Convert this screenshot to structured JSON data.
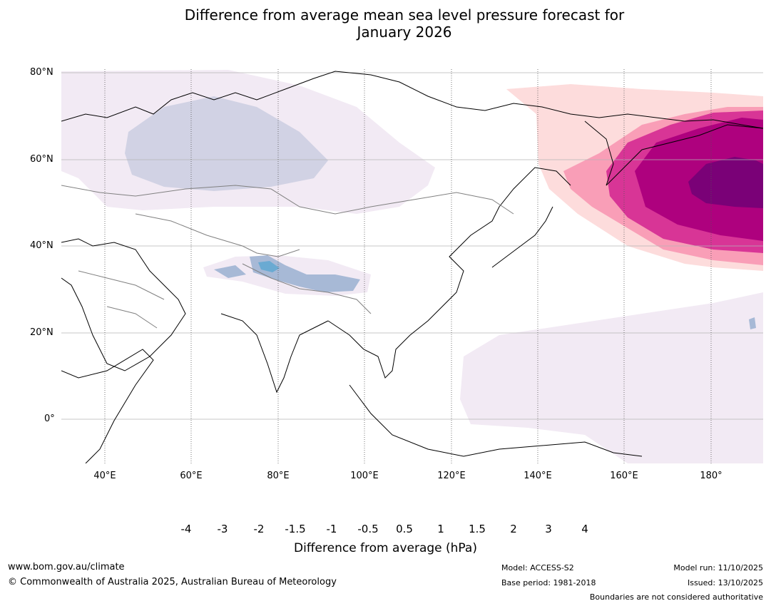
{
  "title": {
    "line1": "Difference from average mean sea level pressure forecast for",
    "line2": "January 2026"
  },
  "map": {
    "lat_labels": [
      "80°N",
      "60°N",
      "40°N",
      "20°N",
      "0°"
    ],
    "lon_labels": [
      "40°E",
      "60°E",
      "80°E",
      "100°E",
      "120°E",
      "140°E",
      "160°E",
      "180°"
    ]
  },
  "colorbar": {
    "label": "Difference from average (hPa)",
    "ticks": [
      "-4",
      "-3",
      "-2",
      "-1.5",
      "-1",
      "-0.5",
      "0.5",
      "1",
      "1.5",
      "2",
      "3",
      "4"
    ],
    "colors": {
      "below_min": "#006d5b",
      "bins": [
        "#1b9099",
        "#6aaad2",
        "#a7b9d6",
        "#d1d2e4",
        "#f2eaf4",
        "#ffffff",
        "#fddcdc",
        "#f99eb7",
        "#d83596",
        "#ae017e",
        "#7a0177"
      ],
      "above_max": "#49006a"
    }
  },
  "footer": {
    "website": "www.bom.gov.au/climate",
    "copyright": "© Commonwealth of Australia 2025, Australian Bureau of Meteorology",
    "model": "Model: ACCESS-S2",
    "base_period": "Base period: 1981-2018",
    "model_run": "Model run: 11/10/2025",
    "issued": "Issued: 13/10/2025",
    "disclaimer": "Boundaries are not considered authoritative"
  }
}
